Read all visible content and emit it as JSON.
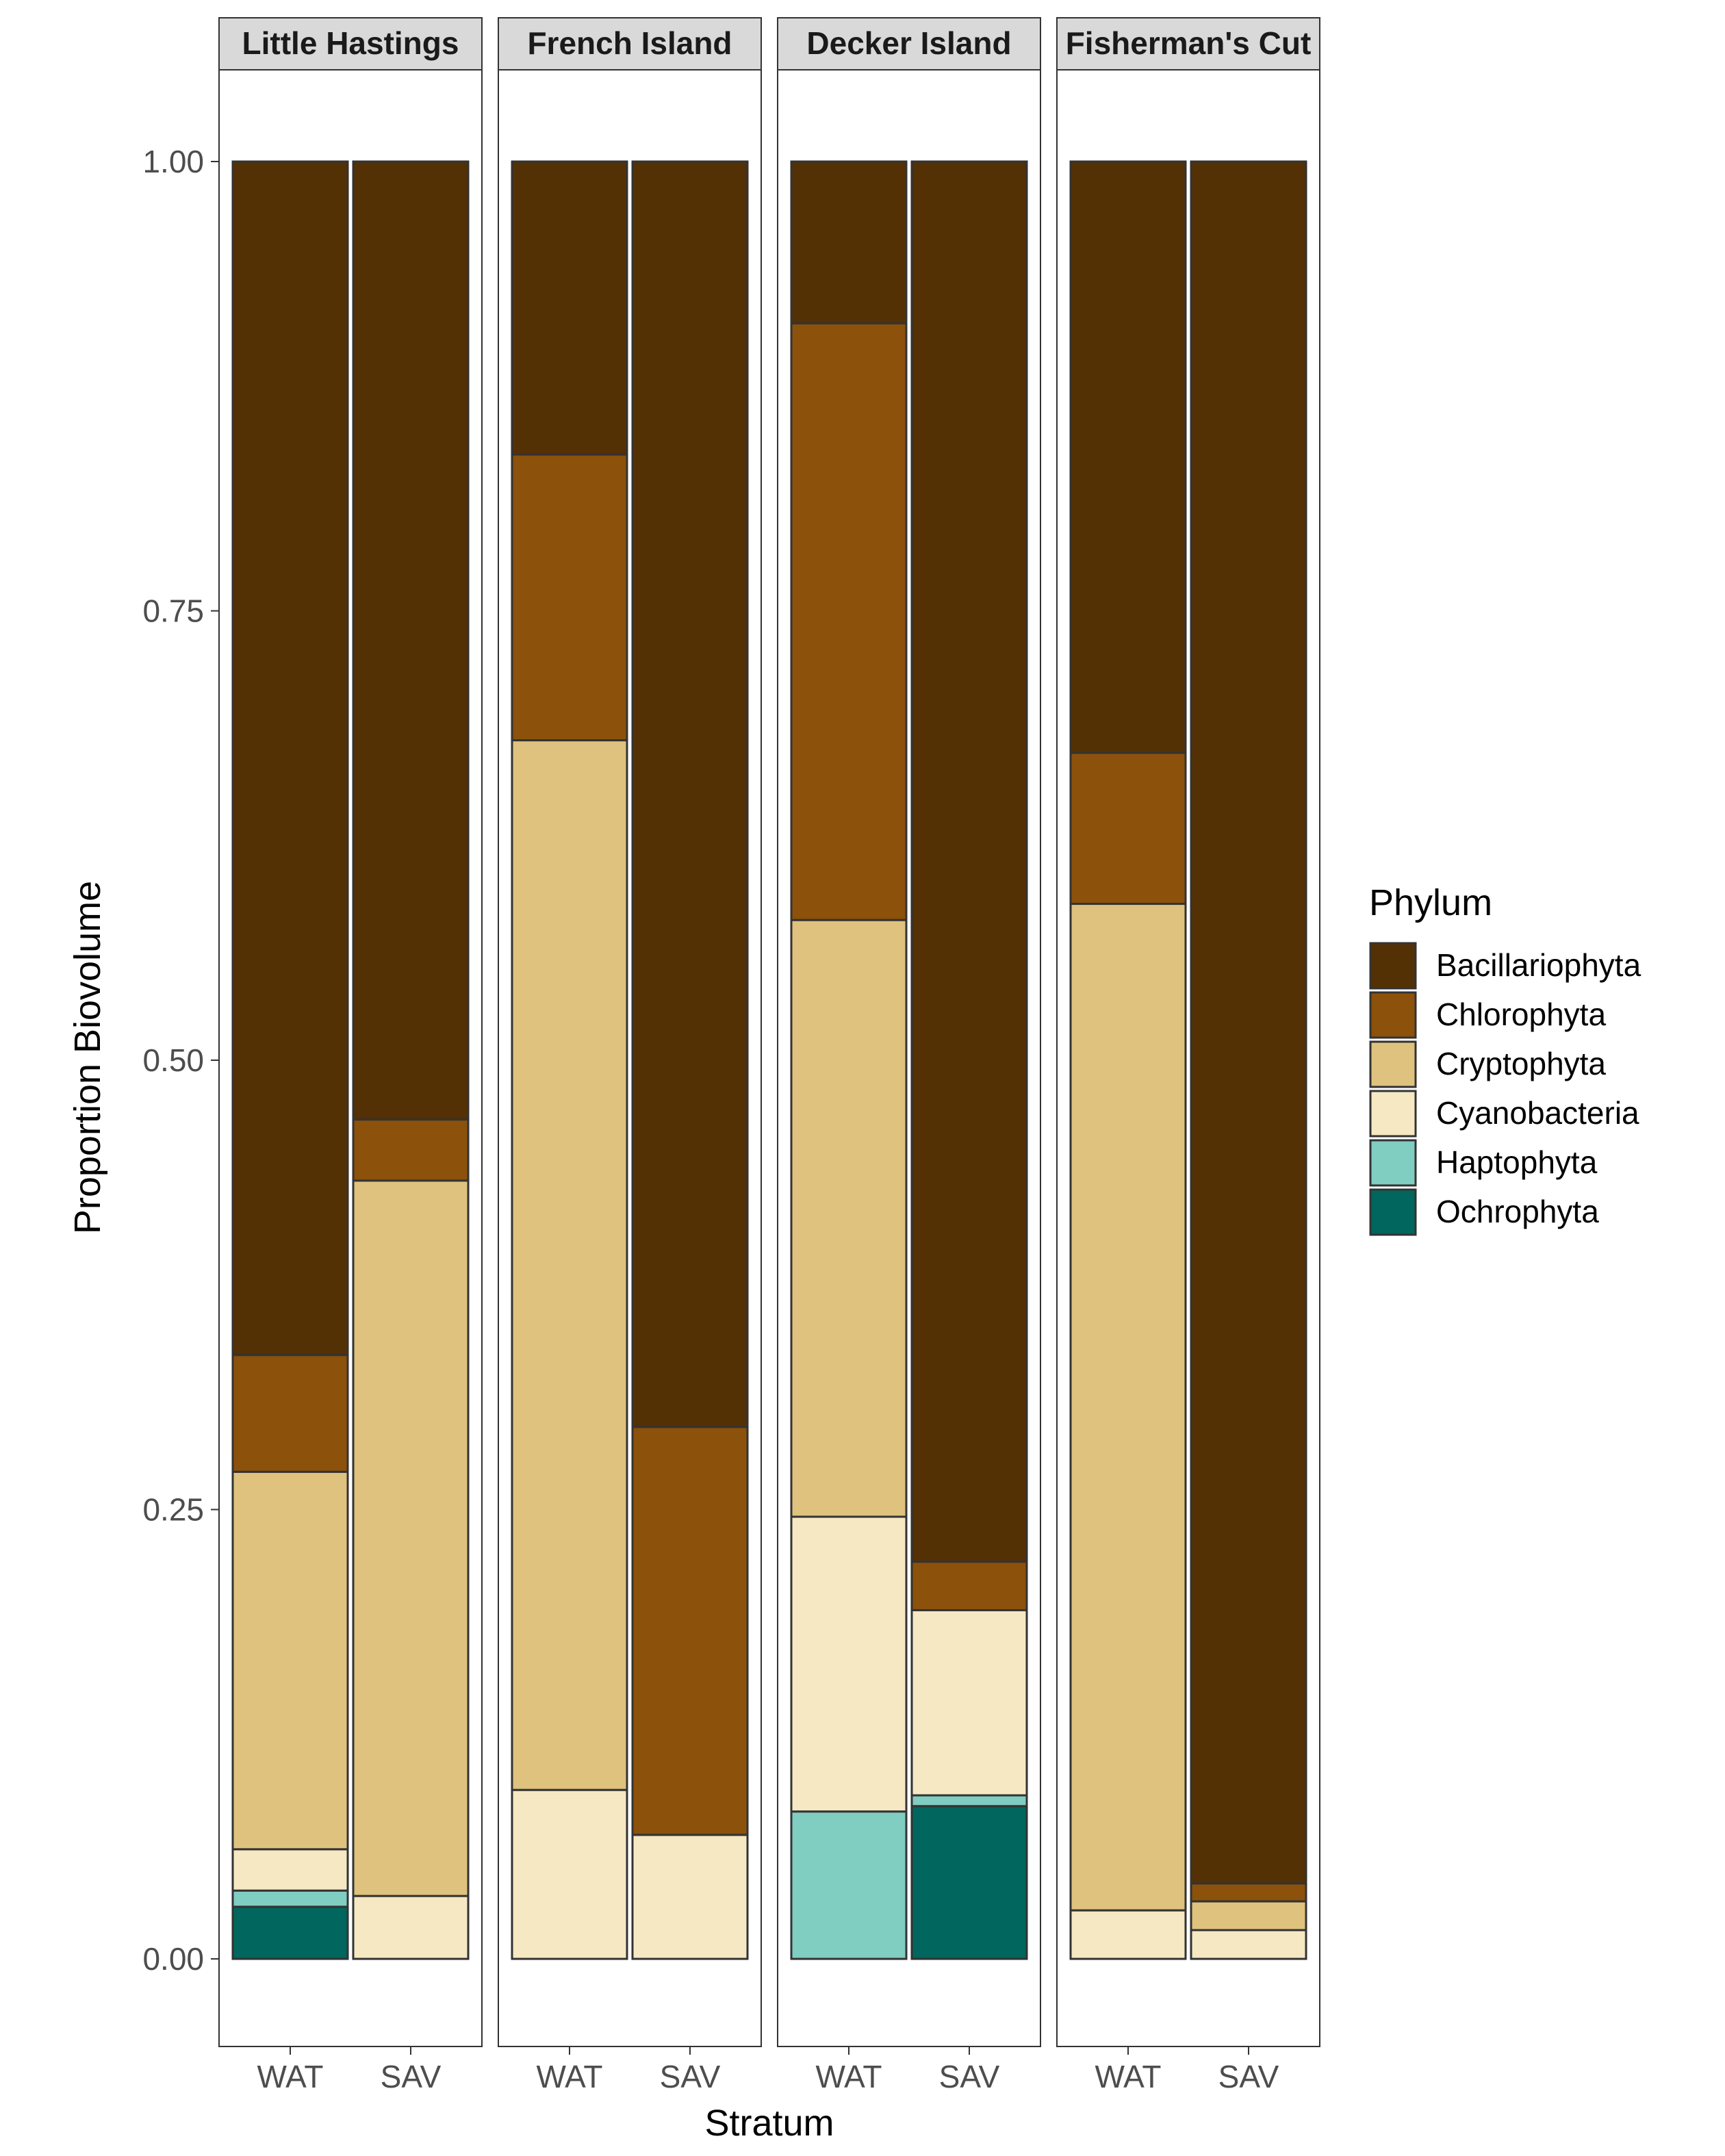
{
  "chart_data": {
    "type": "bar",
    "stacked": true,
    "ylabel": "Proportion Biovolume",
    "xlabel": "Stratum",
    "ylim": [
      -0.05,
      1.05
    ],
    "yticks": [
      0,
      0.25,
      0.5,
      0.75,
      1
    ],
    "ytick_labels": [
      "0.00",
      "0.25",
      "0.50",
      "0.75",
      "1.00"
    ],
    "categories": [
      "WAT",
      "SAV"
    ],
    "legend": {
      "title": "Phylum",
      "position": "right",
      "entries": [
        "Bacillariophyta",
        "Chlorophyta",
        "Cryptophyta",
        "Cyanobacteria",
        "Haptophyta",
        "Ochrophyta"
      ]
    },
    "colors": {
      "Bacillariophyta": "#543005",
      "Chlorophyta": "#8C510A",
      "Cryptophyta": "#DFC27D",
      "Cyanobacteria": "#F6E8C3",
      "Haptophyta": "#80CDC1",
      "Ochrophyta": "#01665E"
    },
    "facets": [
      {
        "label": "Little Hastings",
        "bars": [
          {
            "category": "WAT",
            "values": {
              "Bacillariophyta": 0.664,
              "Chlorophyta": 0.065,
              "Cryptophyta": 0.21,
              "Cyanobacteria": 0.023,
              "Haptophyta": 0.009,
              "Ochrophyta": 0.029
            }
          },
          {
            "category": "SAV",
            "values": {
              "Bacillariophyta": 0.533,
              "Chlorophyta": 0.034,
              "Cryptophyta": 0.398,
              "Cyanobacteria": 0.035,
              "Haptophyta": 0.0,
              "Ochrophyta": 0.0
            }
          }
        ]
      },
      {
        "label": "French Island",
        "bars": [
          {
            "category": "WAT",
            "values": {
              "Bacillariophyta": 0.163,
              "Chlorophyta": 0.159,
              "Cryptophyta": 0.584,
              "Cyanobacteria": 0.094,
              "Haptophyta": 0.0,
              "Ochrophyta": 0.0
            }
          },
          {
            "category": "SAV",
            "values": {
              "Bacillariophyta": 0.704,
              "Chlorophyta": 0.227,
              "Cryptophyta": 0.0,
              "Cyanobacteria": 0.069,
              "Haptophyta": 0.0,
              "Ochrophyta": 0.0
            }
          }
        ]
      },
      {
        "label": "Decker Island",
        "bars": [
          {
            "category": "WAT",
            "values": {
              "Bacillariophyta": 0.09,
              "Chlorophyta": 0.332,
              "Cryptophyta": 0.332,
              "Cyanobacteria": 0.164,
              "Haptophyta": 0.082,
              "Ochrophyta": 0.0
            }
          },
          {
            "category": "SAV",
            "values": {
              "Bacillariophyta": 0.779,
              "Chlorophyta": 0.027,
              "Cryptophyta": 0.0,
              "Cyanobacteria": 0.103,
              "Haptophyta": 0.006,
              "Ochrophyta": 0.085
            }
          }
        ]
      },
      {
        "label": "Fisherman's Cut",
        "bars": [
          {
            "category": "WAT",
            "values": {
              "Bacillariophyta": 0.329,
              "Chlorophyta": 0.084,
              "Cryptophyta": 0.56,
              "Cyanobacteria": 0.027,
              "Haptophyta": 0.0,
              "Ochrophyta": 0.0
            }
          },
          {
            "category": "SAV",
            "values": {
              "Bacillariophyta": 0.958,
              "Chlorophyta": 0.01,
              "Cryptophyta": 0.016,
              "Cyanobacteria": 0.016,
              "Haptophyta": 0.0,
              "Ochrophyta": 0.0
            }
          }
        ]
      }
    ]
  }
}
